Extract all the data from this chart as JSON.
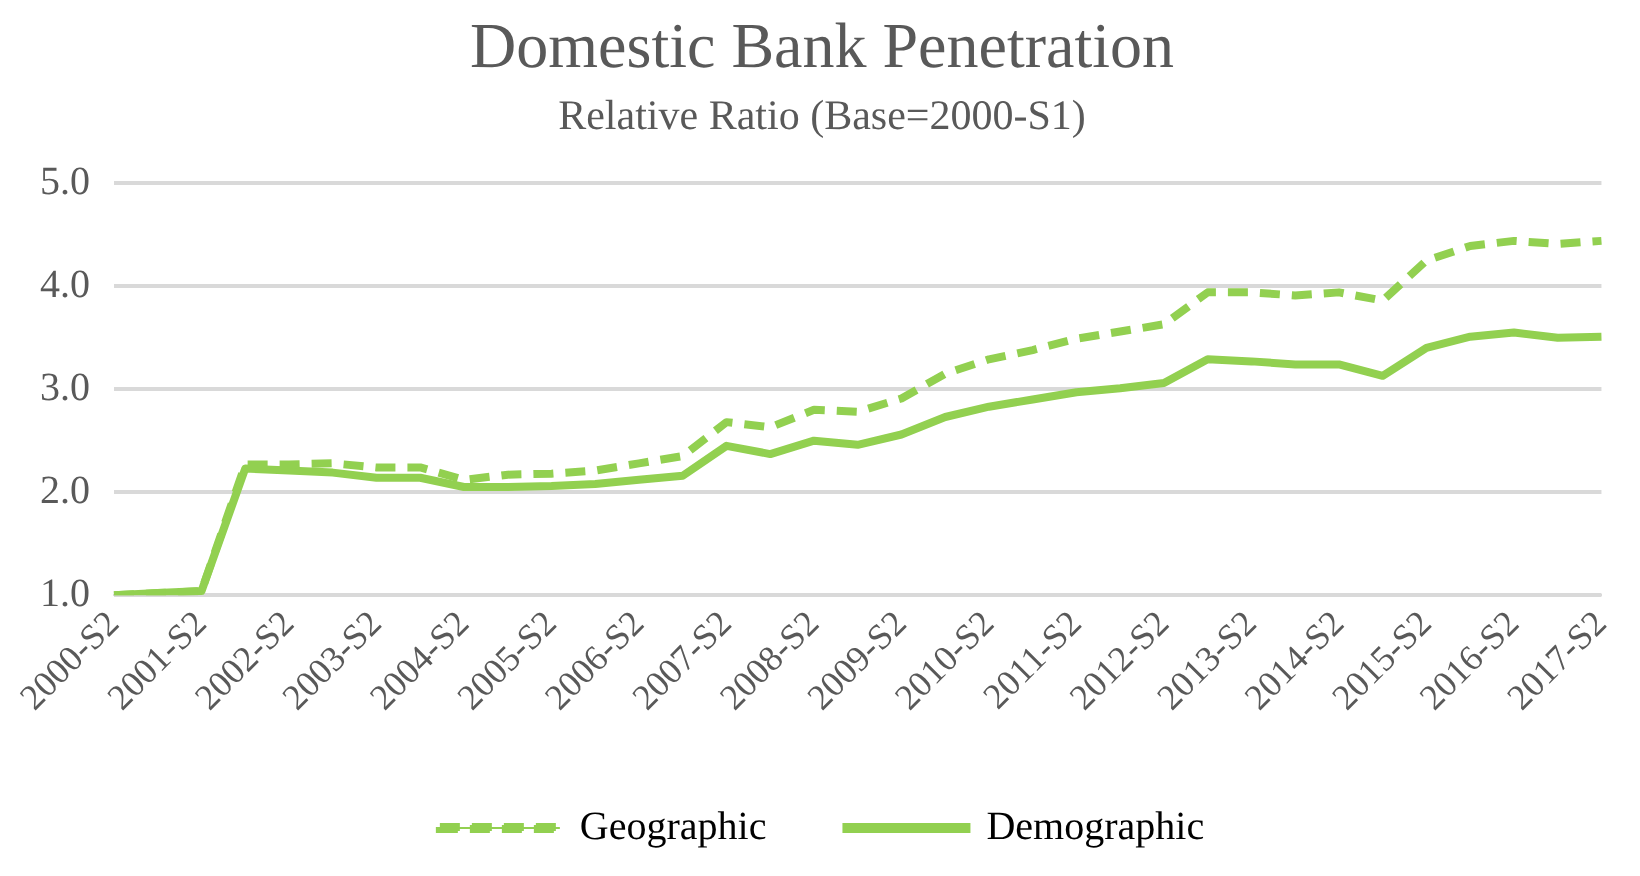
{
  "chart_data": {
    "type": "line",
    "title": "Domestic Bank Penetration",
    "subtitle": "Relative Ratio (Base=2000-S1)",
    "categories": [
      "2000-S2",
      null,
      "2001-S2",
      null,
      "2002-S2",
      null,
      "2003-S2",
      null,
      "2004-S2",
      null,
      "2005-S2",
      null,
      "2006-S2",
      null,
      "2007-S2",
      null,
      "2008-S2",
      null,
      "2009-S2",
      null,
      "2010-S2",
      null,
      "2011-S2",
      null,
      "2012-S2",
      null,
      "2013-S2",
      null,
      "2014-S2",
      null,
      "2015-S2",
      null,
      "2016-S2",
      null,
      "2017-S2"
    ],
    "series": [
      {
        "name": "Geographic",
        "color": "#92d050",
        "line_style": "dashed",
        "values": [
          1.0,
          1.02,
          1.04,
          2.27,
          2.27,
          2.28,
          2.24,
          2.24,
          2.12,
          2.17,
          2.18,
          2.21,
          2.28,
          2.35,
          2.68,
          2.63,
          2.8,
          2.78,
          2.91,
          3.15,
          3.29,
          3.38,
          3.49,
          3.56,
          3.63,
          3.94,
          3.94,
          3.91,
          3.94,
          3.86,
          4.25,
          4.39,
          4.44,
          4.41,
          4.44
        ]
      },
      {
        "name": "Demographic",
        "color": "#92d050",
        "line_style": "solid",
        "values": [
          1.0,
          1.02,
          1.04,
          2.23,
          2.21,
          2.19,
          2.14,
          2.14,
          2.05,
          2.05,
          2.06,
          2.08,
          2.12,
          2.16,
          2.45,
          2.37,
          2.5,
          2.46,
          2.56,
          2.73,
          2.83,
          2.9,
          2.97,
          3.01,
          3.06,
          3.29,
          3.27,
          3.24,
          3.24,
          3.13,
          3.4,
          3.51,
          3.55,
          3.5,
          3.51
        ]
      }
    ],
    "ylim": [
      1,
      5
    ],
    "yticks": [
      {
        "value": 1,
        "label": "1.0"
      },
      {
        "value": 2,
        "label": "2.0"
      },
      {
        "value": 3,
        "label": "3.0"
      },
      {
        "value": 4,
        "label": "4.0"
      },
      {
        "value": 5,
        "label": "5.0"
      }
    ],
    "grid": "y",
    "legend": "bottom",
    "marker": "none"
  }
}
